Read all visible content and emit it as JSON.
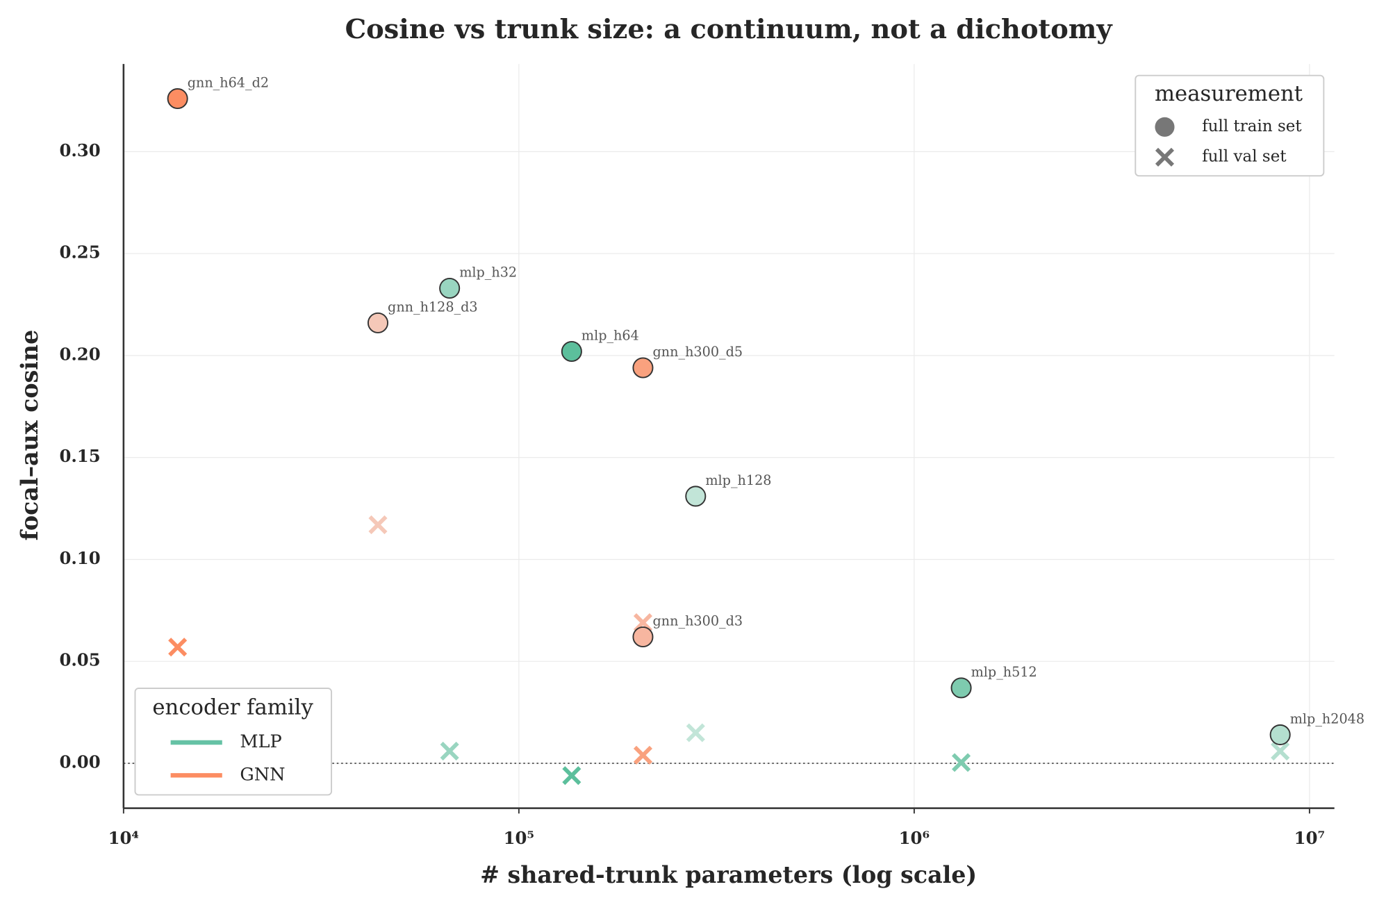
{
  "chart_data": {
    "type": "scatter",
    "title": "Cosine vs trunk size: a continuum, not a dichotomy",
    "x_label": "# shared-trunk parameters  (log scale)",
    "y_label": "focal–aux cosine",
    "xscale": "log",
    "xlim": [
      10000,
      11560000
    ],
    "ylim": [
      -0.022,
      0.343
    ],
    "xticks": [
      {
        "value": 10000,
        "label": "10⁴"
      },
      {
        "value": 100000,
        "label": "10⁵"
      },
      {
        "value": 1000000,
        "label": "10⁶"
      },
      {
        "value": 10000000,
        "label": "10⁷"
      }
    ],
    "yticks": [
      {
        "value": 0,
        "label": "0.00"
      },
      {
        "value": 0.05,
        "label": "0.05"
      },
      {
        "value": 0.1,
        "label": "0.10"
      },
      {
        "value": 0.15,
        "label": "0.15"
      },
      {
        "value": 0.2,
        "label": "0.20"
      },
      {
        "value": 0.25,
        "label": "0.25"
      },
      {
        "value": 0.3,
        "label": "0.30"
      }
    ],
    "grid": true,
    "reference_line": 0,
    "points": [
      {
        "label": "gnn_h64_d2",
        "color": "#fc8d62",
        "x": 13700,
        "train": 0.326,
        "val": 0.057
      },
      {
        "label": "gnn_h128_d3",
        "color": "#f5c8b8",
        "x": 44000,
        "train": 0.216,
        "val": 0.117
      },
      {
        "label": "mlp_h32",
        "color": "#99d5c0",
        "x": 66800,
        "train": 0.233,
        "val": 0.006
      },
      {
        "label": "mlp_h64",
        "color": "#5cbf9c",
        "x": 136000,
        "train": 0.202,
        "val": -0.006
      },
      {
        "label": "gnn_h300_d5",
        "color": "#f9a17e",
        "x": 206000,
        "train": 0.194,
        "val": 0.004
      },
      {
        "label": "gnn_h300_d3",
        "color": "#f7b6a0",
        "x": 206000,
        "train": 0.062,
        "val": 0.069
      },
      {
        "label": "mlp_h128",
        "color": "#c2e5d8",
        "x": 280000,
        "train": 0.131,
        "val": 0.015
      },
      {
        "label": "mlp_h512",
        "color": "#7ecbaf",
        "x": 1315000,
        "train": 0.037,
        "val": 0.0004
      },
      {
        "label": "mlp_h2048",
        "color": "#b4dfcf",
        "x": 8430000,
        "train": 0.014,
        "val": 0.006
      }
    ],
    "measurement_legend": {
      "title": "measurement",
      "position": "upper right",
      "entries": [
        "full train set",
        "full val set"
      ]
    },
    "family_legend": {
      "title": "encoder family",
      "position": "lower left",
      "entries": [
        {
          "name": "MLP",
          "color": "#66c2a5"
        },
        {
          "name": "GNN",
          "color": "#fc8d62"
        }
      ]
    }
  }
}
